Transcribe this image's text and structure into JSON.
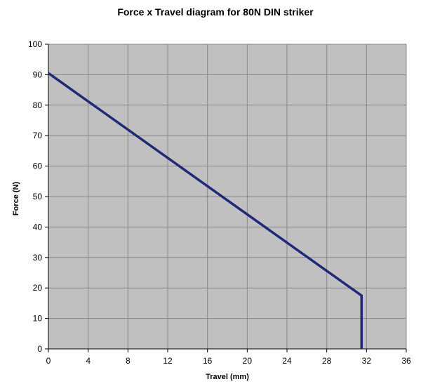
{
  "chart_data": {
    "type": "line",
    "title": "Force x Travel diagram for 80N DIN striker",
    "xlabel": "Travel (mm)",
    "ylabel": "Force (N)",
    "xlim": [
      0,
      36
    ],
    "ylim": [
      0,
      100
    ],
    "x_ticks": [
      "0",
      "4",
      "8",
      "12",
      "16",
      "20",
      "24",
      "28",
      "32",
      "36"
    ],
    "y_ticks": [
      "0",
      "10",
      "20",
      "30",
      "40",
      "50",
      "60",
      "70",
      "80",
      "90",
      "100"
    ],
    "grid": true,
    "legend": "none",
    "series": [
      {
        "x": [
          0,
          31.5,
          31.5
        ],
        "y": [
          90.5,
          17.5,
          0
        ]
      }
    ],
    "colors": {
      "plot_background": "#c0c0c0",
      "grid": "#888888",
      "line": "#1e2a78",
      "axis": "#000000"
    }
  }
}
